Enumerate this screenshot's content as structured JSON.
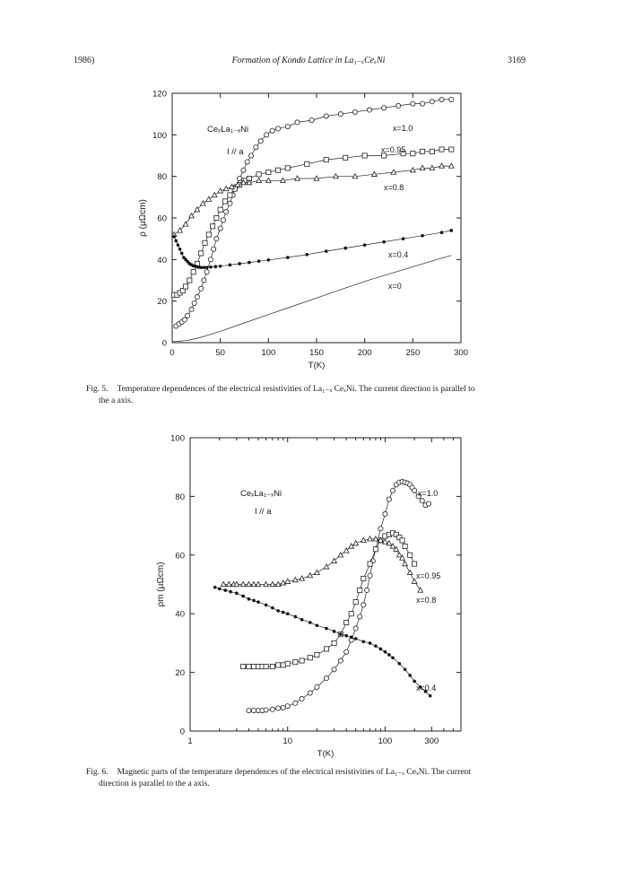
{
  "header": {
    "left": "1986)",
    "center": "Formation of Kondo Lattice in La₁₋ₓCeₓNi",
    "right": "3169"
  },
  "figure5": {
    "legend": {
      "compound": "CeₓLa₁₋ₓNi",
      "current": "I // a"
    },
    "caption": {
      "label": "Fig. 5.",
      "line1": "Temperature dependences of the electrical resistivities of La₁₋ₓ CeₓNi. The current direction is parallel to",
      "line2": "the a axis."
    },
    "chart_data": {
      "type": "scatter",
      "xlabel": "T(K)",
      "ylabel": "ρ (μΩcm)",
      "xlim": [
        0,
        300
      ],
      "ylim": [
        0,
        120
      ],
      "xticks": [
        0,
        50,
        100,
        150,
        200,
        250,
        300
      ],
      "yticks": [
        0,
        20,
        40,
        60,
        80,
        100,
        120
      ],
      "series": [
        {
          "name": "x=1.0",
          "marker": "circle",
          "x": [
            4,
            7,
            10,
            13,
            16,
            20,
            23,
            26,
            30,
            33,
            36,
            40,
            43,
            46,
            50,
            53,
            56,
            60,
            63,
            66,
            70,
            74,
            78,
            82,
            87,
            92,
            98,
            104,
            110,
            120,
            130,
            145,
            160,
            175,
            190,
            205,
            220,
            235,
            250,
            260,
            270,
            280,
            290
          ],
          "y": [
            8,
            9,
            10,
            11,
            13,
            16,
            19,
            22,
            26,
            30,
            34,
            40,
            45,
            50,
            55,
            59,
            63,
            67,
            71,
            75,
            79,
            83,
            87,
            90,
            94,
            97,
            100,
            102,
            103,
            104,
            106,
            107,
            109,
            110,
            111,
            112,
            113,
            114,
            115,
            115,
            116,
            117,
            117
          ]
        },
        {
          "name": "x=0.95",
          "marker": "square",
          "x": [
            2,
            5,
            8,
            11,
            14,
            18,
            22,
            26,
            30,
            34,
            38,
            42,
            46,
            50,
            55,
            60,
            65,
            70,
            75,
            80,
            90,
            100,
            110,
            120,
            140,
            160,
            180,
            200,
            220,
            240,
            250,
            260,
            270,
            280,
            290
          ],
          "y": [
            23,
            23,
            24,
            25,
            27,
            30,
            34,
            38,
            43,
            48,
            52,
            56,
            60,
            64,
            68,
            71,
            74,
            76,
            78,
            79,
            81,
            82,
            83,
            84,
            86,
            88,
            89,
            90,
            90,
            91,
            91,
            92,
            92,
            93,
            93
          ]
        },
        {
          "name": "x=0.8",
          "marker": "triangle",
          "x": [
            2,
            8,
            14,
            20,
            26,
            32,
            38,
            44,
            50,
            56,
            62,
            68,
            74,
            80,
            90,
            100,
            115,
            130,
            150,
            170,
            190,
            210,
            230,
            250,
            260,
            270,
            280,
            290
          ],
          "y": [
            52,
            54,
            57,
            61,
            64,
            67,
            69,
            71,
            73,
            74,
            75,
            76,
            77,
            77,
            78,
            78,
            78,
            79,
            79,
            80,
            80,
            81,
            82,
            83,
            84,
            84,
            85,
            85
          ]
        },
        {
          "name": "x=0.4",
          "marker": "filled-circle",
          "x": [
            2,
            4,
            6,
            8,
            10,
            12,
            14,
            16,
            18,
            20,
            22,
            24,
            26,
            28,
            30,
            33,
            36,
            40,
            45,
            50,
            60,
            70,
            80,
            90,
            100,
            120,
            140,
            160,
            180,
            200,
            220,
            240,
            260,
            280,
            290
          ],
          "y": [
            51,
            49,
            47,
            45,
            43,
            41,
            40,
            39,
            38,
            37.5,
            37,
            36.8,
            36.5,
            36.3,
            36.2,
            36.2,
            36.2,
            36.4,
            36.6,
            36.8,
            37.4,
            38,
            38.6,
            39.2,
            39.8,
            41,
            42.4,
            44,
            45.5,
            47,
            48.5,
            50,
            51.5,
            53,
            54
          ]
        },
        {
          "name": "x=0",
          "marker": "line",
          "x": [
            0,
            5,
            10,
            15,
            20,
            25,
            30,
            40,
            50,
            75,
            100,
            125,
            150,
            175,
            200,
            225,
            250,
            275,
            290
          ],
          "y": [
            0.5,
            0.6,
            0.8,
            1,
            1.5,
            2,
            2.6,
            4,
            5.5,
            9.5,
            13.5,
            17.5,
            21.5,
            25.5,
            29.5,
            33,
            36.5,
            40,
            42
          ]
        }
      ]
    }
  },
  "figure6": {
    "legend": {
      "compound": "CeₓLa₁₋ₓNi",
      "current": "I // a"
    },
    "caption": {
      "label": "Fig. 6.",
      "line1": "Magnetic parts of the temperature dependences of the electrical resistivities of La₁₋ₓ CeₓNi. The current",
      "line2": "direction is parallel to the a axis."
    },
    "chart_data": {
      "type": "scatter",
      "xscale": "log",
      "xlabel": "T(K)",
      "ylabel": "ρm (μΩcm)",
      "xlim": [
        1,
        600
      ],
      "ylim": [
        0,
        100
      ],
      "xticks": [
        1,
        10,
        100,
        300
      ],
      "yticks": [
        0,
        20,
        40,
        60,
        80,
        100
      ],
      "series": [
        {
          "name": "x=1.0",
          "marker": "circle",
          "x": [
            4,
            4.5,
            5,
            5.5,
            6,
            7,
            8,
            9,
            10,
            12,
            14,
            17,
            20,
            25,
            30,
            35,
            40,
            45,
            50,
            55,
            60,
            65,
            70,
            75,
            80,
            90,
            100,
            110,
            120,
            130,
            140,
            150,
            160,
            170,
            180,
            190,
            200,
            220,
            240,
            260,
            280
          ],
          "y": [
            7,
            7,
            7,
            7,
            7.2,
            7.4,
            7.8,
            8,
            8.5,
            9.5,
            11,
            13,
            15,
            18,
            21,
            24,
            27,
            31,
            35,
            39,
            43,
            48,
            53,
            58,
            62,
            69,
            74,
            79,
            82,
            84,
            84.8,
            85,
            84.8,
            84.5,
            84,
            83,
            82,
            80,
            78.5,
            77,
            77.5
          ]
        },
        {
          "name": "x=0.95",
          "marker": "square",
          "x": [
            3.5,
            4,
            4.5,
            5,
            5.5,
            6,
            7,
            8,
            9,
            10,
            12,
            14,
            17,
            20,
            25,
            30,
            35,
            40,
            45,
            50,
            55,
            60,
            70,
            80,
            90,
            100,
            110,
            120,
            130,
            140,
            150,
            160,
            180,
            200
          ],
          "y": [
            22,
            22,
            22,
            22,
            22,
            22,
            22,
            22.5,
            22.5,
            23,
            23.5,
            24,
            25,
            26,
            28,
            30,
            33,
            37,
            40,
            44,
            48,
            52,
            57,
            62,
            65,
            66.5,
            67,
            67.5,
            67,
            66,
            65,
            63,
            60,
            57
          ]
        },
        {
          "name": "x=0.8",
          "marker": "triangle",
          "x": [
            2.2,
            2.5,
            2.8,
            3,
            3.5,
            4,
            4.5,
            5,
            6,
            7,
            8,
            9,
            10,
            12,
            14,
            17,
            20,
            25,
            30,
            35,
            40,
            45,
            50,
            60,
            70,
            80,
            90,
            100,
            110,
            120,
            130,
            140,
            150,
            160,
            180,
            200,
            230
          ],
          "y": [
            50,
            50,
            50,
            50,
            50,
            50,
            50,
            50,
            50,
            50,
            50,
            50.5,
            51,
            51.5,
            52,
            53,
            54,
            56,
            58,
            60,
            61.5,
            63,
            64,
            65,
            65.5,
            65.5,
            65,
            64.5,
            64,
            63,
            62,
            60,
            59,
            57,
            54,
            51,
            48
          ]
        },
        {
          "name": "x=0.4",
          "marker": "filled-circle",
          "x": [
            1.8,
            2,
            2.3,
            2.6,
            3,
            3.5,
            4,
            4.5,
            5,
            6,
            7,
            8,
            9,
            10,
            12,
            14,
            17,
            20,
            25,
            30,
            35,
            40,
            45,
            50,
            60,
            70,
            80,
            90,
            100,
            110,
            120,
            140,
            160,
            180,
            200,
            230,
            260,
            290
          ],
          "y": [
            49,
            48.5,
            48,
            47.5,
            47,
            46,
            45,
            44.5,
            44,
            43,
            42,
            41,
            40.5,
            40,
            39,
            38,
            37,
            36,
            35,
            34,
            33,
            32.5,
            32,
            31.5,
            30.5,
            30,
            29,
            28,
            27,
            26,
            25,
            23,
            21,
            19,
            17,
            15,
            13.5,
            12
          ]
        }
      ]
    }
  }
}
